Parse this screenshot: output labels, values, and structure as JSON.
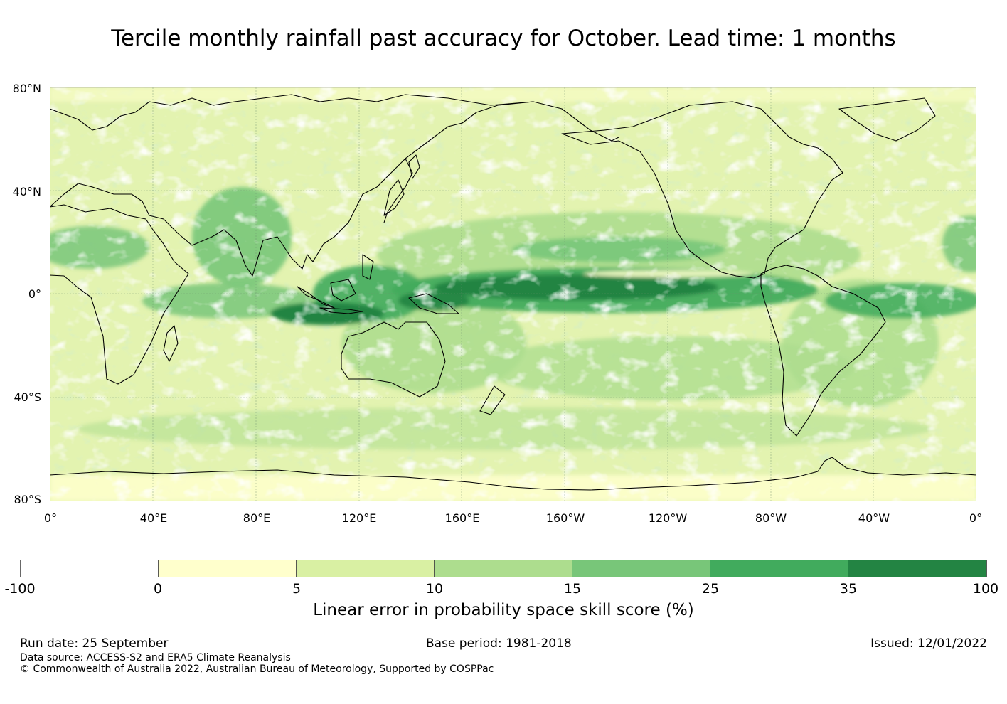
{
  "title": "Tercile monthly rainfall past accuracy for October. Lead time: 1 months",
  "map": {
    "lat_labels": [
      "80°N",
      "40°N",
      "0°",
      "40°S",
      "80°S"
    ],
    "lon_labels": [
      "0°",
      "40°E",
      "80°E",
      "120°E",
      "160°E",
      "160°W",
      "120°W",
      "80°W",
      "40°W",
      "0°"
    ],
    "extent": {
      "lon_start": 0,
      "lon_end": 360,
      "lat_top": 80,
      "lat_bottom": -80
    },
    "regions": [
      {
        "name": "equatorial-pacific-band",
        "level": 35
      },
      {
        "name": "maritime-continent-band",
        "level": 35
      },
      {
        "name": "north-tropical-pacific",
        "level": 25
      },
      {
        "name": "arabian-sea-india",
        "level": 15
      },
      {
        "name": "north-brazil-atlantic",
        "level": 25
      },
      {
        "name": "southern-ocean",
        "level": 10
      }
    ]
  },
  "colorbar": {
    "ticks": [
      "-100",
      "0",
      "5",
      "10",
      "15",
      "25",
      "35",
      "100"
    ],
    "colors": [
      "#ffffff",
      "#ffffcc",
      "#d9f0a3",
      "#addd8e",
      "#78c679",
      "#41ab5d",
      "#238443"
    ],
    "label": "Linear error in probability space skill score (%)"
  },
  "footer": {
    "run_date": "Run date: 25 September",
    "base_period": "Base period: 1981-2018",
    "issued": "Issued: 12/01/2022",
    "data_source": "Data source: ACCESS-S2 and ERA5 Climate Reanalysis",
    "copyright": "© Commonwealth of Australia 2022, Australian Bureau of Meteorology, Supported by COSPPac"
  }
}
